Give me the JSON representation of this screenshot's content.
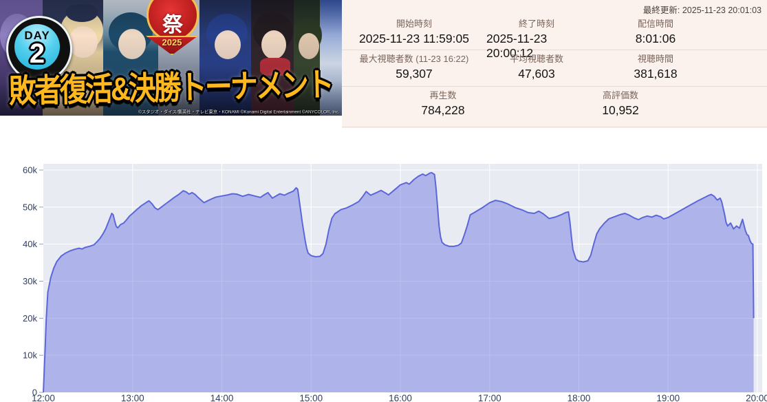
{
  "thumbnail": {
    "day_badge_label": "DAY",
    "day_badge_number": "2",
    "festival_kanji": "祭",
    "festival_year": "2025",
    "title": "敗者復活&決勝トーナメント",
    "copyright": "©スタジオ・ダイス/集英社・テレビ東京・KONAMI ©Konami Digital Entertainment ©ANYCOLOR, Inc."
  },
  "stats": {
    "last_updated": "最終更新: 2025-11-23 20:01:03",
    "rows": [
      {
        "cells": [
          {
            "label": "開始時刻",
            "value": "2025-11-23  11:59:05"
          },
          {
            "label": "終了時刻",
            "value": "2025-11-23  20:00:12"
          },
          {
            "label": "配信時間",
            "value": "8:01:06"
          }
        ]
      },
      {
        "cells": [
          {
            "label": "最大視聴者数 (11-23 16:22)",
            "value": "59,307"
          },
          {
            "label": "平均視聴者数",
            "value": "47,603"
          },
          {
            "label": "視聴時間",
            "value": "381,618"
          }
        ]
      },
      {
        "cells": [
          {
            "label": "再生数",
            "value": "784,228"
          },
          {
            "label": "高評価数",
            "value": "10,952"
          }
        ]
      }
    ]
  },
  "theme": {
    "panel_bg": "#fbf2ed",
    "divider": "#e8dad3",
    "label": "#7a655b",
    "value": "#141414",
    "muted": "#4e413b"
  },
  "chart_data": {
    "type": "area",
    "title": "",
    "xlabel": "",
    "ylabel": "",
    "x_unit": "minutes after 12:00",
    "x_range": [
      0,
      480
    ],
    "y_range": [
      0,
      60000
    ],
    "grid": true,
    "legend": false,
    "x_ticks": [
      "12:00",
      "13:00",
      "14:00",
      "15:00",
      "16:00",
      "17:00",
      "18:00",
      "19:00",
      "20:00"
    ],
    "y_ticks": [
      "0",
      "10k",
      "20k",
      "30k",
      "40k",
      "50k",
      "60k"
    ],
    "colors": {
      "plot_bg": "#e9ebf2",
      "grid": "#ffffff",
      "area_fill": "rgba(101,112,221,0.45)",
      "line": "#5b67d8",
      "tick_text": "#2f3e5c",
      "tick_mark": "#97a0b3"
    },
    "series": [
      {
        "name": "viewers_thousands",
        "points": [
          [
            0,
            0
          ],
          [
            1,
            10
          ],
          [
            2,
            20
          ],
          [
            3,
            27
          ],
          [
            5,
            31
          ],
          [
            7,
            33.5
          ],
          [
            9,
            35.3
          ],
          [
            12,
            36.8
          ],
          [
            15,
            37.6
          ],
          [
            18,
            38.2
          ],
          [
            21,
            38.6
          ],
          [
            24,
            38.9
          ],
          [
            26,
            38.7
          ],
          [
            28,
            39.1
          ],
          [
            31,
            39.4
          ],
          [
            34,
            39.8
          ],
          [
            36,
            40.6
          ],
          [
            38,
            41.5
          ],
          [
            40,
            42.7
          ],
          [
            42,
            44.2
          ],
          [
            44,
            46.2
          ],
          [
            46,
            48.3
          ],
          [
            47,
            47.9
          ],
          [
            48,
            46.2
          ],
          [
            49,
            44.8
          ],
          [
            50,
            44.4
          ],
          [
            52,
            45.3
          ],
          [
            54,
            45.7
          ],
          [
            56,
            46.6
          ],
          [
            58,
            47.6
          ],
          [
            60,
            48.3
          ],
          [
            63,
            49.4
          ],
          [
            66,
            50.4
          ],
          [
            69,
            51.2
          ],
          [
            71,
            51.7
          ],
          [
            73,
            50.9
          ],
          [
            75,
            49.8
          ],
          [
            77,
            49.3
          ],
          [
            79,
            49.9
          ],
          [
            82,
            50.8
          ],
          [
            85,
            51.7
          ],
          [
            88,
            52.6
          ],
          [
            91,
            53.4
          ],
          [
            94,
            54.4
          ],
          [
            96,
            54.1
          ],
          [
            98,
            53.5
          ],
          [
            100,
            53.9
          ],
          [
            102,
            53.4
          ],
          [
            104,
            52.6
          ],
          [
            106,
            51.9
          ],
          [
            108,
            51.2
          ],
          [
            110,
            51.6
          ],
          [
            113,
            52.2
          ],
          [
            116,
            52.7
          ],
          [
            120,
            53.0
          ],
          [
            124,
            53.3
          ],
          [
            127,
            53.6
          ],
          [
            130,
            53.5
          ],
          [
            134,
            52.9
          ],
          [
            138,
            53.4
          ],
          [
            142,
            53.0
          ],
          [
            146,
            52.6
          ],
          [
            148,
            53.2
          ],
          [
            151,
            53.9
          ],
          [
            154,
            52.4
          ],
          [
            156,
            52.9
          ],
          [
            159,
            53.6
          ],
          [
            162,
            53.2
          ],
          [
            165,
            53.8
          ],
          [
            168,
            54.3
          ],
          [
            170,
            55.2
          ],
          [
            171,
            54.8
          ],
          [
            172,
            52.0
          ],
          [
            174,
            46.0
          ],
          [
            176,
            41.0
          ],
          [
            177,
            38.9
          ],
          [
            178,
            37.6
          ],
          [
            180,
            36.9
          ],
          [
            183,
            36.6
          ],
          [
            186,
            36.7
          ],
          [
            188,
            37.5
          ],
          [
            190,
            40.0
          ],
          [
            192,
            44.0
          ],
          [
            194,
            47.0
          ],
          [
            196,
            48.2
          ],
          [
            200,
            49.3
          ],
          [
            204,
            49.8
          ],
          [
            208,
            50.6
          ],
          [
            212,
            51.5
          ],
          [
            215,
            53.0
          ],
          [
            217,
            54.2
          ],
          [
            220,
            53.2
          ],
          [
            224,
            53.9
          ],
          [
            227,
            54.5
          ],
          [
            230,
            53.8
          ],
          [
            232,
            53.3
          ],
          [
            235,
            54.3
          ],
          [
            238,
            55.3
          ],
          [
            240,
            56.0
          ],
          [
            244,
            56.6
          ],
          [
            246,
            56.2
          ],
          [
            249,
            57.4
          ],
          [
            252,
            58.3
          ],
          [
            255,
            58.9
          ],
          [
            257,
            58.5
          ],
          [
            260,
            59.2
          ],
          [
            261,
            59.3
          ],
          [
            263,
            58.8
          ],
          [
            264,
            55.0
          ],
          [
            265,
            50.0
          ],
          [
            266,
            45.0
          ],
          [
            267,
            42.0
          ],
          [
            268,
            40.5
          ],
          [
            270,
            39.8
          ],
          [
            273,
            39.4
          ],
          [
            276,
            39.4
          ],
          [
            279,
            39.7
          ],
          [
            281,
            40.3
          ],
          [
            283,
            42.5
          ],
          [
            285,
            45.0
          ],
          [
            287,
            47.9
          ],
          [
            290,
            48.6
          ],
          [
            295,
            49.8
          ],
          [
            300,
            51.2
          ],
          [
            304,
            51.8
          ],
          [
            308,
            51.5
          ],
          [
            312,
            50.9
          ],
          [
            317,
            49.9
          ],
          [
            322,
            49.2
          ],
          [
            326,
            48.5
          ],
          [
            330,
            48.3
          ],
          [
            333,
            48.9
          ],
          [
            336,
            48.2
          ],
          [
            340,
            46.9
          ],
          [
            344,
            47.3
          ],
          [
            348,
            47.9
          ],
          [
            351,
            48.5
          ],
          [
            353,
            48.7
          ],
          [
            354,
            46.0
          ],
          [
            355,
            42.0
          ],
          [
            356,
            38.5
          ],
          [
            358,
            36.0
          ],
          [
            360,
            35.4
          ],
          [
            363,
            35.2
          ],
          [
            366,
            35.5
          ],
          [
            368,
            37.0
          ],
          [
            370,
            40.0
          ],
          [
            372,
            42.8
          ],
          [
            374,
            44.2
          ],
          [
            377,
            45.6
          ],
          [
            380,
            46.8
          ],
          [
            384,
            47.4
          ],
          [
            388,
            48.0
          ],
          [
            391,
            48.3
          ],
          [
            394,
            47.8
          ],
          [
            397,
            47.1
          ],
          [
            400,
            46.6
          ],
          [
            403,
            47.2
          ],
          [
            406,
            47.6
          ],
          [
            409,
            47.3
          ],
          [
            412,
            47.8
          ],
          [
            415,
            47.4
          ],
          [
            417,
            46.8
          ],
          [
            420,
            47.2
          ],
          [
            424,
            48.1
          ],
          [
            428,
            49.0
          ],
          [
            432,
            49.9
          ],
          [
            436,
            50.8
          ],
          [
            440,
            51.7
          ],
          [
            444,
            52.5
          ],
          [
            447,
            53.1
          ],
          [
            449,
            53.4
          ],
          [
            451,
            52.9
          ],
          [
            453,
            51.9
          ],
          [
            455,
            52.4
          ],
          [
            456,
            51.5
          ],
          [
            458,
            48.0
          ],
          [
            459,
            45.8
          ],
          [
            460,
            44.9
          ],
          [
            462,
            45.7
          ],
          [
            464,
            44.1
          ],
          [
            466,
            44.9
          ],
          [
            468,
            44.3
          ],
          [
            470,
            46.7
          ],
          [
            471,
            45.2
          ],
          [
            472,
            43.6
          ],
          [
            473,
            42.6
          ],
          [
            474,
            42.3
          ],
          [
            475,
            41.0
          ],
          [
            476,
            40.2
          ],
          [
            477,
            40.0
          ],
          [
            477.5,
            20.0
          ]
        ]
      }
    ]
  }
}
